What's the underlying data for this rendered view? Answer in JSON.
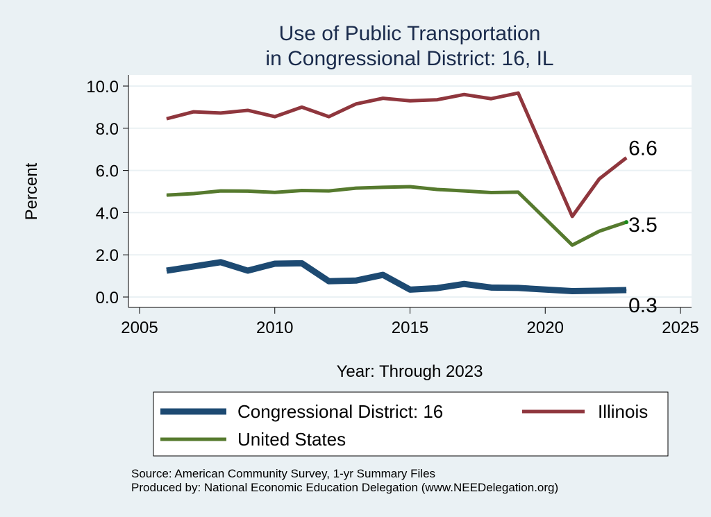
{
  "chart_data": {
    "type": "line",
    "title": [
      "Use of Public Transportation",
      "in Congressional District: 16, IL"
    ],
    "xlabel": "Year: Through 2023",
    "ylabel": "Percent",
    "xlim": [
      2005,
      2025
    ],
    "ylim": [
      0,
      10
    ],
    "xticks": [
      2005,
      2010,
      2015,
      2020,
      2025
    ],
    "yticks": [
      0,
      2,
      4,
      6,
      8,
      10
    ],
    "ytick_labels": [
      "0.0",
      "2.0",
      "4.0",
      "6.0",
      "8.0",
      "10.0"
    ],
    "grid": "horizontal",
    "legend_placement": "bottom",
    "x": [
      2006,
      2007,
      2008,
      2009,
      2010,
      2011,
      2012,
      2013,
      2014,
      2015,
      2016,
      2017,
      2018,
      2019,
      2021,
      2022,
      2023
    ],
    "series": [
      {
        "name": "Congressional District: 16",
        "color": "#1d4a72",
        "line_weight": "thick",
        "values": [
          1.25,
          1.45,
          1.65,
          1.25,
          1.58,
          1.6,
          0.75,
          0.78,
          1.05,
          0.35,
          0.42,
          0.62,
          0.45,
          0.43,
          0.28,
          0.3,
          0.33
        ],
        "end_label": "0.3"
      },
      {
        "name": "Illinois",
        "color": "#8f363d",
        "line_weight": "medium",
        "values": [
          8.45,
          8.78,
          8.72,
          8.85,
          8.55,
          9.0,
          8.55,
          9.15,
          9.42,
          9.3,
          9.35,
          9.6,
          9.4,
          9.67,
          3.82,
          5.6,
          6.6
        ],
        "end_label": "6.6"
      },
      {
        "name": "United States",
        "color": "#567a2e",
        "line_weight": "medium",
        "values": [
          4.83,
          4.9,
          5.03,
          5.02,
          4.96,
          5.05,
          5.03,
          5.16,
          5.2,
          5.23,
          5.1,
          5.03,
          4.95,
          4.97,
          2.46,
          3.12,
          3.55
        ],
        "end_label": "3.5"
      }
    ],
    "legend": [
      "Congressional District: 16",
      "Illinois",
      "United States"
    ],
    "notes": [
      "Source: American Community Survey, 1-yr Summary Files",
      "Produced by: National Economic Education Delegation (www.NEEDelegation.org)"
    ]
  }
}
